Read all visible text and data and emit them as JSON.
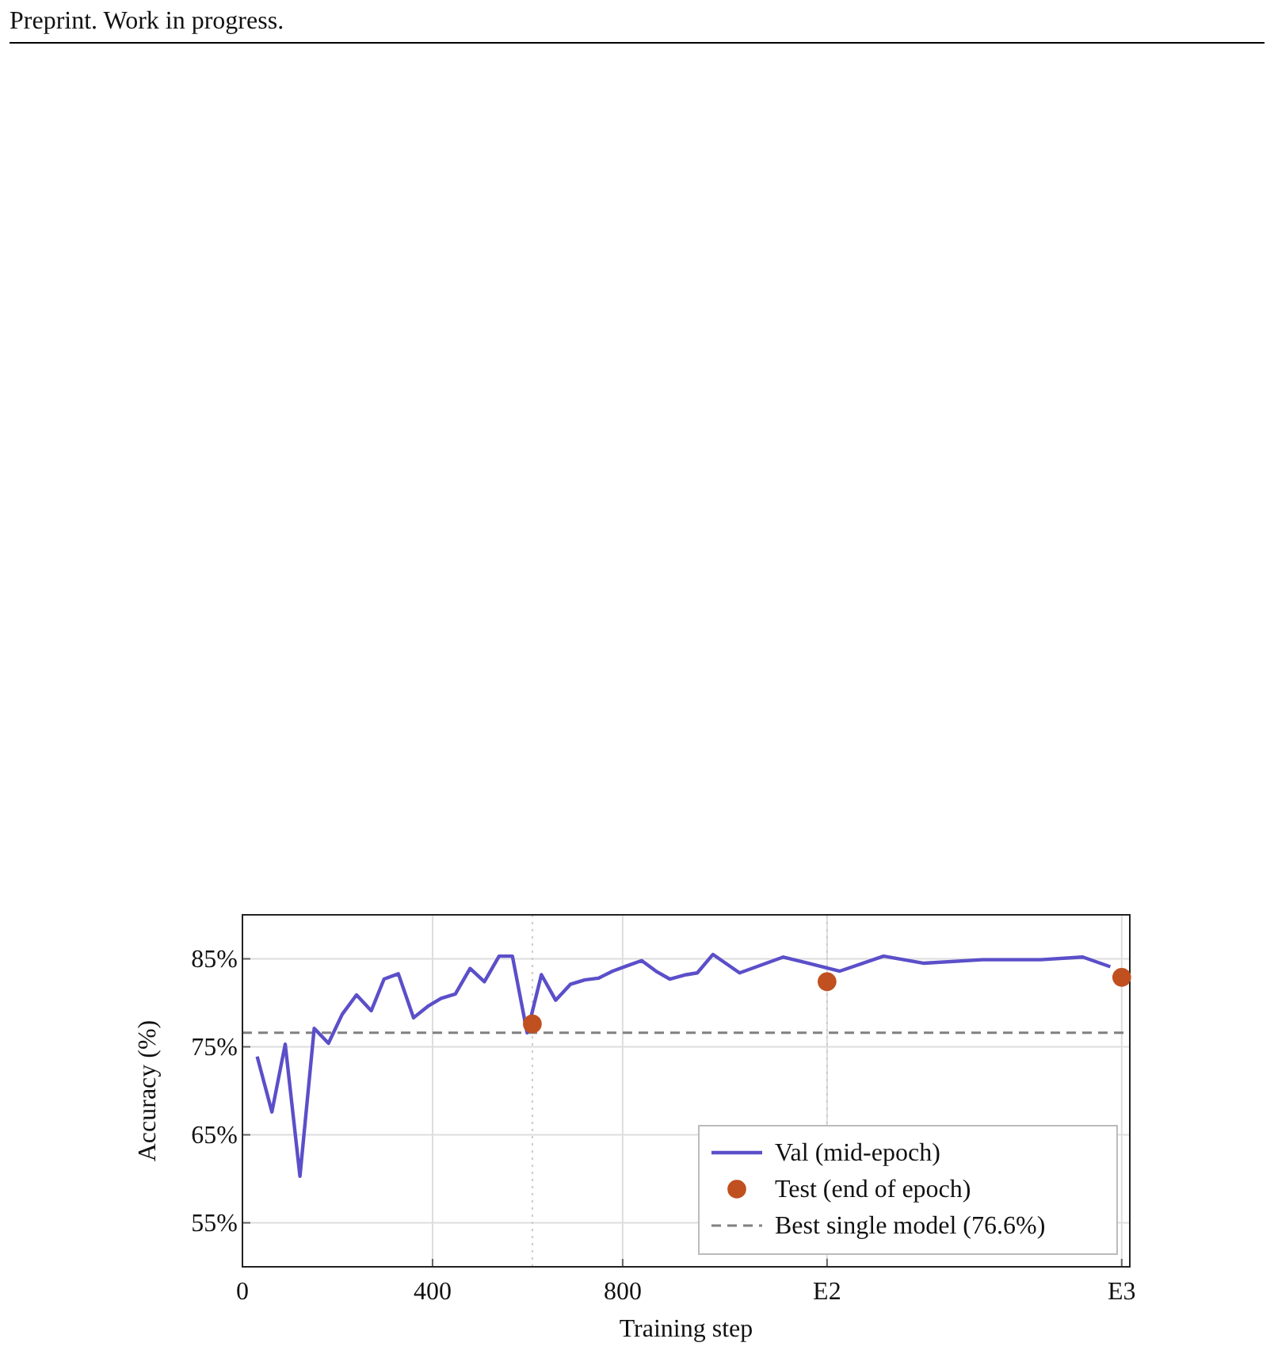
{
  "chart_data": {
    "type": "line",
    "xlabel": "Training step",
    "ylabel": "Accuracy (%)",
    "annotations": [
      "Preprint. Work in progress."
    ],
    "xlim": [
      0,
      1867
    ],
    "xticks": [
      0,
      400,
      800,
      {
        "value": 1230,
        "label": "E2"
      },
      {
        "value": 1850,
        "label": "E3"
      }
    ],
    "ylim": [
      50,
      90
    ],
    "yticks": [
      {
        "value": 55,
        "label": "55%"
      },
      {
        "value": 65,
        "label": "65%"
      },
      {
        "value": 75,
        "label": "75%"
      },
      {
        "value": 85,
        "label": "85%"
      }
    ],
    "grid": true,
    "legend": "bottom right",
    "series": [
      {
        "name": "Val (mid-epoch)",
        "color": "#5b4fc9",
        "marker": "none",
        "line_style": "solid",
        "x": [
          31,
          62,
          90,
          121,
          151,
          181,
          210,
          240,
          271,
          298,
          328,
          360,
          390,
          418,
          448,
          479,
          509,
          540,
          568,
          599,
          629,
          659,
          690,
          720,
          749,
          779,
          809,
          840,
          870,
          899,
          934,
          957,
          990,
          1046,
          1138,
          1257,
          1349,
          1434,
          1557,
          1679,
          1768,
          1826
        ],
        "values": [
          73.9,
          67.6,
          75.3,
          60.3,
          77.1,
          75.4,
          78.7,
          80.9,
          79.1,
          82.7,
          83.3,
          78.3,
          79.6,
          80.5,
          81.0,
          83.9,
          82.4,
          85.3,
          85.3,
          76.6,
          83.2,
          80.3,
          82.1,
          82.6,
          82.8,
          83.6,
          84.2,
          84.8,
          83.6,
          82.7,
          83.2,
          83.4,
          85.5,
          83.4,
          85.2,
          83.6,
          85.3,
          84.5,
          84.9,
          84.9,
          85.2,
          84.1
        ]
      },
      {
        "name": "Test (end of epoch)",
        "type": "scatter",
        "color": "#c0501f",
        "marker": "circle",
        "x": [
          610,
          1230,
          1850
        ],
        "values": [
          77.6,
          82.4,
          82.9
        ]
      }
    ],
    "ref_lines": [
      {
        "axis": "y",
        "value": 76.6,
        "label": "Best single model (76.6%)",
        "color": "#808080",
        "line_style": "dashed"
      },
      {
        "axis": "x",
        "value": 610,
        "color": "#cccccc",
        "line_style": "dotted"
      },
      {
        "axis": "x",
        "value": 1230,
        "color": "#cccccc",
        "line_style": "dotted"
      }
    ]
  }
}
